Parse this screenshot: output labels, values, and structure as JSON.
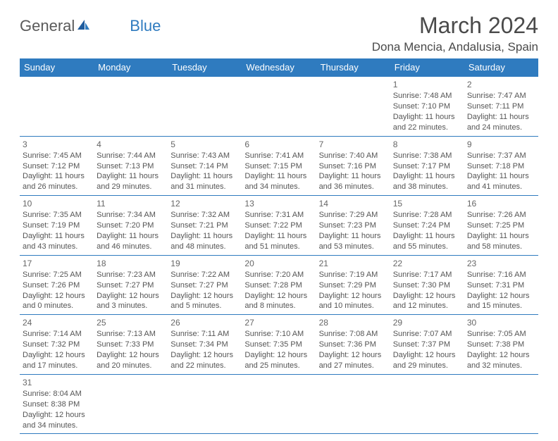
{
  "logo": {
    "word1": "General",
    "word2": "Blue"
  },
  "title": "March 2024",
  "location": "Dona Mencia, Andalusia, Spain",
  "colors": {
    "header_bg": "#2f7bbf",
    "header_text": "#ffffff",
    "rule": "#2f7bbf",
    "text": "#555555"
  },
  "day_headers": [
    "Sunday",
    "Monday",
    "Tuesday",
    "Wednesday",
    "Thursday",
    "Friday",
    "Saturday"
  ],
  "weeks": [
    [
      null,
      null,
      null,
      null,
      null,
      {
        "n": "1",
        "sr": "7:48 AM",
        "ss": "7:10 PM",
        "dl": "11 hours and 22 minutes."
      },
      {
        "n": "2",
        "sr": "7:47 AM",
        "ss": "7:11 PM",
        "dl": "11 hours and 24 minutes."
      }
    ],
    [
      {
        "n": "3",
        "sr": "7:45 AM",
        "ss": "7:12 PM",
        "dl": "11 hours and 26 minutes."
      },
      {
        "n": "4",
        "sr": "7:44 AM",
        "ss": "7:13 PM",
        "dl": "11 hours and 29 minutes."
      },
      {
        "n": "5",
        "sr": "7:43 AM",
        "ss": "7:14 PM",
        "dl": "11 hours and 31 minutes."
      },
      {
        "n": "6",
        "sr": "7:41 AM",
        "ss": "7:15 PM",
        "dl": "11 hours and 34 minutes."
      },
      {
        "n": "7",
        "sr": "7:40 AM",
        "ss": "7:16 PM",
        "dl": "11 hours and 36 minutes."
      },
      {
        "n": "8",
        "sr": "7:38 AM",
        "ss": "7:17 PM",
        "dl": "11 hours and 38 minutes."
      },
      {
        "n": "9",
        "sr": "7:37 AM",
        "ss": "7:18 PM",
        "dl": "11 hours and 41 minutes."
      }
    ],
    [
      {
        "n": "10",
        "sr": "7:35 AM",
        "ss": "7:19 PM",
        "dl": "11 hours and 43 minutes."
      },
      {
        "n": "11",
        "sr": "7:34 AM",
        "ss": "7:20 PM",
        "dl": "11 hours and 46 minutes."
      },
      {
        "n": "12",
        "sr": "7:32 AM",
        "ss": "7:21 PM",
        "dl": "11 hours and 48 minutes."
      },
      {
        "n": "13",
        "sr": "7:31 AM",
        "ss": "7:22 PM",
        "dl": "11 hours and 51 minutes."
      },
      {
        "n": "14",
        "sr": "7:29 AM",
        "ss": "7:23 PM",
        "dl": "11 hours and 53 minutes."
      },
      {
        "n": "15",
        "sr": "7:28 AM",
        "ss": "7:24 PM",
        "dl": "11 hours and 55 minutes."
      },
      {
        "n": "16",
        "sr": "7:26 AM",
        "ss": "7:25 PM",
        "dl": "11 hours and 58 minutes."
      }
    ],
    [
      {
        "n": "17",
        "sr": "7:25 AM",
        "ss": "7:26 PM",
        "dl": "12 hours and 0 minutes."
      },
      {
        "n": "18",
        "sr": "7:23 AM",
        "ss": "7:27 PM",
        "dl": "12 hours and 3 minutes."
      },
      {
        "n": "19",
        "sr": "7:22 AM",
        "ss": "7:27 PM",
        "dl": "12 hours and 5 minutes."
      },
      {
        "n": "20",
        "sr": "7:20 AM",
        "ss": "7:28 PM",
        "dl": "12 hours and 8 minutes."
      },
      {
        "n": "21",
        "sr": "7:19 AM",
        "ss": "7:29 PM",
        "dl": "12 hours and 10 minutes."
      },
      {
        "n": "22",
        "sr": "7:17 AM",
        "ss": "7:30 PM",
        "dl": "12 hours and 12 minutes."
      },
      {
        "n": "23",
        "sr": "7:16 AM",
        "ss": "7:31 PM",
        "dl": "12 hours and 15 minutes."
      }
    ],
    [
      {
        "n": "24",
        "sr": "7:14 AM",
        "ss": "7:32 PM",
        "dl": "12 hours and 17 minutes."
      },
      {
        "n": "25",
        "sr": "7:13 AM",
        "ss": "7:33 PM",
        "dl": "12 hours and 20 minutes."
      },
      {
        "n": "26",
        "sr": "7:11 AM",
        "ss": "7:34 PM",
        "dl": "12 hours and 22 minutes."
      },
      {
        "n": "27",
        "sr": "7:10 AM",
        "ss": "7:35 PM",
        "dl": "12 hours and 25 minutes."
      },
      {
        "n": "28",
        "sr": "7:08 AM",
        "ss": "7:36 PM",
        "dl": "12 hours and 27 minutes."
      },
      {
        "n": "29",
        "sr": "7:07 AM",
        "ss": "7:37 PM",
        "dl": "12 hours and 29 minutes."
      },
      {
        "n": "30",
        "sr": "7:05 AM",
        "ss": "7:38 PM",
        "dl": "12 hours and 32 minutes."
      }
    ],
    [
      {
        "n": "31",
        "sr": "8:04 AM",
        "ss": "8:38 PM",
        "dl": "12 hours and 34 minutes."
      },
      null,
      null,
      null,
      null,
      null,
      null
    ]
  ],
  "labels": {
    "sunrise": "Sunrise: ",
    "sunset": "Sunset: ",
    "daylight": "Daylight: "
  }
}
